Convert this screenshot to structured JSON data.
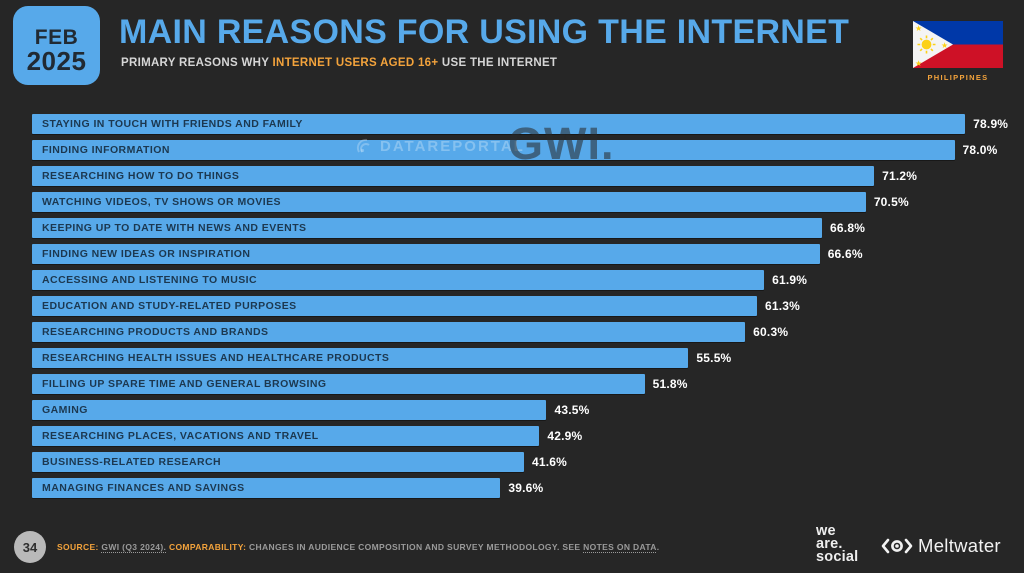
{
  "slide": {
    "date_line1": "FEB",
    "date_line2": "2025",
    "title": "MAIN REASONS FOR USING THE INTERNET",
    "subtitle_pre": "PRIMARY REASONS WHY ",
    "subtitle_highlight": "INTERNET USERS AGED 16+",
    "subtitle_post": " USE THE INTERNET",
    "country_label": "PHILIPPINES",
    "page_number": "34"
  },
  "watermarks": {
    "dataportal": "DATAREPORTAL",
    "gwi": "GWI."
  },
  "chart_data": {
    "type": "bar",
    "orientation": "horizontal",
    "title": "MAIN REASONS FOR USING THE INTERNET",
    "categories": [
      "STAYING IN TOUCH WITH FRIENDS AND FAMILY",
      "FINDING INFORMATION",
      "RESEARCHING HOW TO DO THINGS",
      "WATCHING VIDEOS, TV SHOWS OR MOVIES",
      "KEEPING UP TO DATE WITH NEWS AND EVENTS",
      "FINDING NEW IDEAS OR INSPIRATION",
      "ACCESSING AND LISTENING TO MUSIC",
      "EDUCATION AND STUDY-RELATED PURPOSES",
      "RESEARCHING PRODUCTS AND BRANDS",
      "RESEARCHING HEALTH ISSUES AND HEALTHCARE PRODUCTS",
      "FILLING UP SPARE TIME AND GENERAL BROWSING",
      "GAMING",
      "RESEARCHING PLACES, VACATIONS AND TRAVEL",
      "BUSINESS-RELATED RESEARCH",
      "MANAGING FINANCES AND SAVINGS"
    ],
    "values": [
      78.9,
      78.0,
      71.2,
      70.5,
      66.8,
      66.6,
      61.9,
      61.3,
      60.3,
      55.5,
      51.8,
      43.5,
      42.9,
      41.6,
      39.6
    ],
    "labels": [
      "78.9%",
      "78.0%",
      "71.2%",
      "70.5%",
      "66.8%",
      "66.6%",
      "61.9%",
      "61.3%",
      "60.3%",
      "55.5%",
      "51.8%",
      "43.5%",
      "42.9%",
      "41.6%",
      "39.6%"
    ],
    "xlim": [
      0,
      81
    ],
    "grid": false,
    "legend": false,
    "bar_color": "#57a9ea",
    "value_label_color": "#ffffff",
    "category_label_color": "#1c3850"
  },
  "footer": {
    "source_label": "SOURCE:",
    "source_value": "GWI (Q3 2024).",
    "comparability_label": "COMPARABILITY:",
    "comparability_text": "CHANGES IN AUDIENCE COMPOSITION AND SURVEY METHODOLOGY. SEE ",
    "notes_link": "NOTES ON DATA",
    "notes_suffix": ".",
    "we_are_social": [
      "we",
      "are.",
      "social"
    ],
    "meltwater": "Meltwater"
  },
  "colors": {
    "background": "#262626",
    "accent_blue": "#57a9ea",
    "accent_orange": "#f3a33c"
  }
}
